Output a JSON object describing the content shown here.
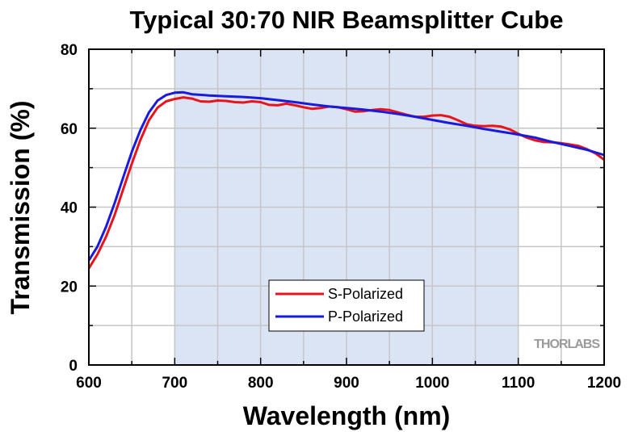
{
  "chart_data": {
    "type": "line",
    "title": "Typical 30:70 NIR Beamsplitter Cube",
    "xlabel": "Wavelength (nm)",
    "ylabel": "Transmission (%)",
    "xlim": [
      600,
      1200
    ],
    "ylim": [
      0,
      80
    ],
    "xticks": [
      600,
      700,
      800,
      900,
      1000,
      1100,
      1200
    ],
    "yticks": [
      0,
      20,
      40,
      60,
      80
    ],
    "grid": true,
    "highlight_band": [
      700,
      1100
    ],
    "legend_position": "bottom-center",
    "watermark": "THORLABS",
    "colors": {
      "s": "#e8141c",
      "p": "#1a1adc",
      "band": "#dbe4f4",
      "grid": "#c6c6c6"
    },
    "series": [
      {
        "name": "S-Polarized",
        "key": "s",
        "points": [
          [
            600,
            24.5
          ],
          [
            610,
            28
          ],
          [
            620,
            32.5
          ],
          [
            630,
            38
          ],
          [
            640,
            44.5
          ],
          [
            650,
            51
          ],
          [
            660,
            57
          ],
          [
            670,
            62
          ],
          [
            680,
            65.2
          ],
          [
            690,
            66.8
          ],
          [
            700,
            67.4
          ],
          [
            710,
            67.8
          ],
          [
            720,
            67.5
          ],
          [
            730,
            66.8
          ],
          [
            740,
            66.7
          ],
          [
            750,
            67
          ],
          [
            760,
            66.9
          ],
          [
            770,
            66.6
          ],
          [
            780,
            66.5
          ],
          [
            790,
            66.8
          ],
          [
            800,
            66.6
          ],
          [
            810,
            65.9
          ],
          [
            820,
            65.8
          ],
          [
            830,
            66.2
          ],
          [
            840,
            65.8
          ],
          [
            850,
            65.3
          ],
          [
            860,
            64.9
          ],
          [
            870,
            65.1
          ],
          [
            880,
            65.5
          ],
          [
            890,
            65.3
          ],
          [
            900,
            64.8
          ],
          [
            910,
            64.2
          ],
          [
            920,
            64.3
          ],
          [
            930,
            64.6
          ],
          [
            940,
            64.8
          ],
          [
            950,
            64.6
          ],
          [
            960,
            64
          ],
          [
            970,
            63.4
          ],
          [
            980,
            62.9
          ],
          [
            990,
            62.9
          ],
          [
            1000,
            63.2
          ],
          [
            1010,
            63.3
          ],
          [
            1020,
            62.9
          ],
          [
            1030,
            62
          ],
          [
            1040,
            61
          ],
          [
            1050,
            60.6
          ],
          [
            1060,
            60.5
          ],
          [
            1070,
            60.6
          ],
          [
            1080,
            60.4
          ],
          [
            1090,
            59.7
          ],
          [
            1100,
            58.6
          ],
          [
            1110,
            57.6
          ],
          [
            1120,
            56.9
          ],
          [
            1130,
            56.5
          ],
          [
            1140,
            56.4
          ],
          [
            1150,
            56.2
          ],
          [
            1160,
            55.9
          ],
          [
            1170,
            55.5
          ],
          [
            1180,
            54.7
          ],
          [
            1190,
            53.6
          ],
          [
            1200,
            52
          ]
        ]
      },
      {
        "name": "P-Polarized",
        "key": "p",
        "points": [
          [
            600,
            26.5
          ],
          [
            610,
            30
          ],
          [
            620,
            35
          ],
          [
            630,
            41
          ],
          [
            640,
            47.5
          ],
          [
            650,
            54
          ],
          [
            660,
            59.5
          ],
          [
            670,
            64
          ],
          [
            680,
            67
          ],
          [
            690,
            68.4
          ],
          [
            700,
            69
          ],
          [
            710,
            69.1
          ],
          [
            720,
            68.6
          ],
          [
            740,
            68.3
          ],
          [
            760,
            68.1
          ],
          [
            780,
            67.9
          ],
          [
            800,
            67.6
          ],
          [
            820,
            67.1
          ],
          [
            840,
            66.6
          ],
          [
            860,
            66
          ],
          [
            880,
            65.5
          ],
          [
            900,
            65.1
          ],
          [
            920,
            64.7
          ],
          [
            940,
            64.2
          ],
          [
            960,
            63.6
          ],
          [
            980,
            62.9
          ],
          [
            1000,
            62.1
          ],
          [
            1020,
            61.3
          ],
          [
            1040,
            60.6
          ],
          [
            1060,
            59.8
          ],
          [
            1080,
            59.1
          ],
          [
            1100,
            58.4
          ],
          [
            1120,
            57.6
          ],
          [
            1140,
            56.5
          ],
          [
            1160,
            55.5
          ],
          [
            1180,
            54.5
          ],
          [
            1200,
            53.2
          ]
        ]
      }
    ]
  }
}
